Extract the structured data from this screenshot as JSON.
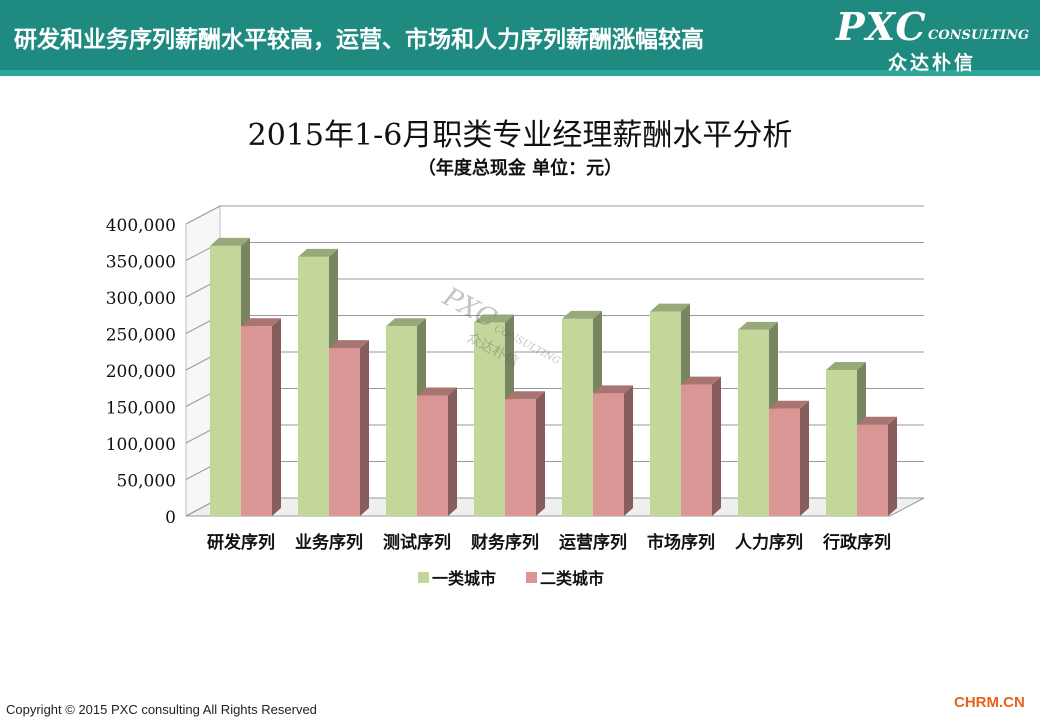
{
  "header": {
    "headline": "研发和业务序列薪酬水平较高，运营、市场和人力序列薪酬涨幅较高",
    "logo_main": "PXC",
    "logo_sub": "CONSULTING",
    "logo_cn": "众达朴信"
  },
  "watermark": {
    "main": "PXC",
    "sub": "CONSULTING",
    "cn": "众达朴信"
  },
  "chart_data": {
    "type": "bar",
    "title": "2015年1-6月职类专业经理薪酬水平分析",
    "subtitle": "（年度总现金  单位：元）",
    "categories": [
      "研发序列",
      "业务序列",
      "测试序列",
      "财务序列",
      "运营序列",
      "市场序列",
      "人力序列",
      "行政序列"
    ],
    "series": [
      {
        "name": "一类城市",
        "color": "#c3d79b",
        "values": [
          370000,
          355000,
          260000,
          265000,
          270000,
          280000,
          255000,
          200000
        ]
      },
      {
        "name": "二类城市",
        "color": "#d99694",
        "values": [
          260000,
          230000,
          165000,
          160000,
          168000,
          180000,
          147000,
          125000
        ]
      }
    ],
    "ylim": [
      0,
      400000
    ],
    "yticks": [
      0,
      50000,
      100000,
      150000,
      200000,
      250000,
      300000,
      350000,
      400000
    ],
    "ytick_labels": [
      "0",
      "50,000",
      "100,000",
      "150,000",
      "200,000",
      "250,000",
      "300,000",
      "350,000",
      "400,000"
    ],
    "grid": true,
    "legend_position": "bottom"
  },
  "footer": {
    "copyright": "Copyright © 2015  PXC consulting All Rights Reserved",
    "site": "CHRM.CN"
  }
}
